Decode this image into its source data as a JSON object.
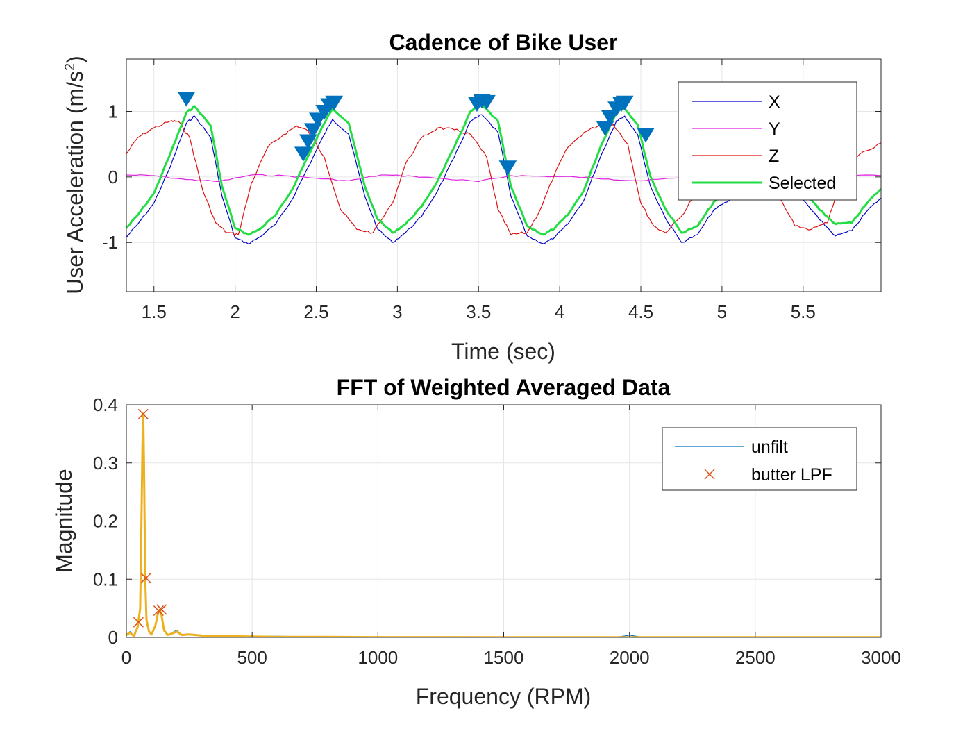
{
  "chart_data": [
    {
      "type": "line",
      "title": "Cadence of Bike User",
      "xlabel": "Time (sec)",
      "ylabel_main": "User Acceleration (m/s",
      "ylabel_sup": "2",
      "ylabel_tail": ")",
      "xlim": [
        1.33,
        5.98
      ],
      "ylim": [
        -1.75,
        1.8
      ],
      "grid": true,
      "legend_position": "top-right",
      "x_ticks": [
        1.5,
        2,
        2.5,
        3,
        3.5,
        4,
        4.5,
        5,
        5.5
      ],
      "x_tick_labels": [
        "1.5",
        "2",
        "2.5",
        "3",
        "3.5",
        "4",
        "4.5",
        "5",
        "5.5"
      ],
      "y_ticks": [
        -1,
        0,
        1
      ],
      "y_tick_labels": [
        "-1",
        "0",
        "1"
      ],
      "colors": {
        "X": "#0000cc",
        "Y": "#e020e0",
        "Z": "#dd1111",
        "Selected": "#22dd44",
        "peaks": "#0072bd"
      },
      "series": [
        {
          "name": "X",
          "x": [
            1.33,
            1.4,
            1.5,
            1.6,
            1.7,
            1.75,
            1.85,
            1.92,
            2.0,
            2.08,
            2.15,
            2.25,
            2.35,
            2.45,
            2.55,
            2.6,
            2.7,
            2.8,
            2.88,
            2.97,
            3.05,
            3.15,
            3.25,
            3.35,
            3.45,
            3.52,
            3.62,
            3.7,
            3.8,
            3.9,
            3.97,
            4.05,
            4.15,
            4.25,
            4.35,
            4.4,
            4.48,
            4.56,
            4.65,
            4.75,
            4.85,
            4.95,
            5.05,
            5.2,
            5.35,
            5.5,
            5.6,
            5.7,
            5.8,
            5.9,
            5.98
          ],
          "y": [
            -0.92,
            -0.72,
            -0.4,
            0.15,
            0.82,
            0.93,
            0.6,
            -0.3,
            -0.93,
            -1.02,
            -0.92,
            -0.72,
            -0.35,
            0.15,
            0.65,
            0.88,
            0.65,
            -0.3,
            -0.8,
            -1.0,
            -0.85,
            -0.6,
            -0.2,
            0.3,
            0.85,
            0.95,
            0.68,
            -0.3,
            -0.9,
            -1.02,
            -0.92,
            -0.72,
            -0.35,
            0.3,
            0.86,
            0.93,
            0.65,
            -0.15,
            -0.62,
            -1.0,
            -0.88,
            -0.5,
            -0.35,
            -0.25,
            -0.3,
            -0.35,
            -0.65,
            -0.9,
            -0.82,
            -0.5,
            -0.32
          ]
        },
        {
          "name": "Y",
          "x": [
            1.33,
            1.5,
            1.7,
            1.9,
            2.1,
            2.3,
            2.5,
            2.7,
            2.9,
            3.1,
            3.3,
            3.5,
            3.7,
            3.9,
            4.1,
            4.3,
            4.5,
            4.7,
            4.9,
            5.1,
            5.3,
            5.5,
            5.7,
            5.98
          ],
          "y": [
            0.03,
            0.02,
            -0.04,
            -0.07,
            0.03,
            0.02,
            -0.02,
            -0.06,
            0.03,
            0.01,
            -0.03,
            -0.07,
            0.02,
            0.01,
            0.0,
            -0.03,
            -0.06,
            -0.02,
            0.0,
            0.02,
            0.01,
            0.02,
            0.02,
            0.02
          ]
        },
        {
          "name": "Z",
          "x": [
            1.33,
            1.4,
            1.5,
            1.6,
            1.65,
            1.72,
            1.8,
            1.88,
            1.95,
            2.02,
            2.1,
            2.2,
            2.3,
            2.38,
            2.45,
            2.55,
            2.65,
            2.75,
            2.85,
            2.97,
            3.05,
            3.15,
            3.25,
            3.35,
            3.45,
            3.55,
            3.62,
            3.7,
            3.8,
            3.88,
            3.97,
            4.05,
            4.15,
            4.25,
            4.33,
            4.42,
            4.5,
            4.58,
            4.65,
            4.75,
            4.85,
            4.95,
            5.05,
            5.15,
            5.25,
            5.35,
            5.45,
            5.55,
            5.65,
            5.75,
            5.85,
            5.98
          ],
          "y": [
            0.35,
            0.6,
            0.75,
            0.85,
            0.85,
            0.6,
            -0.2,
            -0.7,
            -0.85,
            -0.88,
            -0.1,
            0.45,
            0.65,
            0.78,
            0.7,
            0.3,
            -0.5,
            -0.8,
            -0.85,
            -0.4,
            0.2,
            0.6,
            0.75,
            0.72,
            0.65,
            0.3,
            -0.5,
            -0.88,
            -0.85,
            -0.5,
            0.05,
            0.45,
            0.68,
            0.8,
            0.8,
            0.5,
            -0.4,
            -0.75,
            -0.85,
            -0.6,
            -0.2,
            0.35,
            0.65,
            0.6,
            0.3,
            -0.3,
            -0.75,
            -0.8,
            -0.7,
            0.1,
            0.35,
            0.52
          ]
        },
        {
          "name": "Selected",
          "x": [
            1.33,
            1.4,
            1.5,
            1.6,
            1.7,
            1.75,
            1.85,
            1.92,
            2.0,
            2.08,
            2.15,
            2.25,
            2.35,
            2.45,
            2.55,
            2.6,
            2.7,
            2.8,
            2.88,
            2.97,
            3.05,
            3.15,
            3.25,
            3.35,
            3.45,
            3.52,
            3.62,
            3.7,
            3.8,
            3.9,
            3.97,
            4.05,
            4.15,
            4.25,
            4.35,
            4.4,
            4.48,
            4.56,
            4.65,
            4.75,
            4.85,
            4.95,
            5.05,
            5.2,
            5.35,
            5.5,
            5.6,
            5.7,
            5.8,
            5.9,
            5.98
          ],
          "y": [
            -0.78,
            -0.58,
            -0.25,
            0.35,
            0.98,
            1.08,
            0.78,
            -0.15,
            -0.78,
            -0.88,
            -0.8,
            -0.58,
            -0.2,
            0.32,
            0.82,
            1.05,
            0.82,
            -0.15,
            -0.65,
            -0.85,
            -0.72,
            -0.45,
            -0.05,
            0.45,
            1.0,
            1.1,
            0.85,
            -0.15,
            -0.75,
            -0.88,
            -0.78,
            -0.58,
            -0.2,
            0.45,
            1.0,
            1.05,
            0.8,
            0.0,
            -0.48,
            -0.85,
            -0.75,
            -0.38,
            -0.2,
            -0.12,
            -0.15,
            -0.2,
            -0.5,
            -0.72,
            -0.7,
            -0.38,
            -0.18
          ]
        }
      ],
      "peaks": {
        "x": [
          1.7,
          2.42,
          2.45,
          2.48,
          2.51,
          2.55,
          2.58,
          2.61,
          3.49,
          3.52,
          3.55,
          3.68,
          4.28,
          4.31,
          4.35,
          4.38,
          4.4,
          4.53
        ],
        "y": [
          1.2,
          0.36,
          0.55,
          0.72,
          0.88,
          1.0,
          1.1,
          1.14,
          1.12,
          1.17,
          1.15,
          0.15,
          0.75,
          0.92,
          1.05,
          1.12,
          1.14,
          0.65
        ]
      },
      "legend": [
        {
          "label": "X",
          "style": "line"
        },
        {
          "label": "Y",
          "style": "line"
        },
        {
          "label": "Z",
          "style": "line"
        },
        {
          "label": "Selected",
          "style": "thick-line"
        }
      ]
    },
    {
      "type": "line",
      "title": "FFT of Weighted Averaged Data",
      "xlabel": "Frequency (RPM)",
      "ylabel": "Magnitude",
      "xlim": [
        0,
        3000
      ],
      "ylim": [
        0,
        0.4
      ],
      "grid": true,
      "legend_position": "top-right",
      "x_ticks": [
        0,
        500,
        1000,
        1500,
        2000,
        2500,
        3000
      ],
      "x_tick_labels": [
        "0",
        "500",
        "1000",
        "1500",
        "2000",
        "2500",
        "3000"
      ],
      "y_ticks": [
        0,
        0.1,
        0.2,
        0.3,
        0.4
      ],
      "y_tick_labels": [
        "0",
        "0.1",
        "0.2",
        "0.3",
        "0.4"
      ],
      "colors": {
        "unfilt": "#0072bd",
        "butter LPF": "#edb120",
        "markers": "#d95319"
      },
      "series": [
        {
          "name": "unfilt",
          "x": [
            0,
            15,
            30,
            45,
            55,
            60,
            64,
            67,
            70,
            75,
            80,
            90,
            100,
            115,
            125,
            133,
            140,
            150,
            165,
            190,
            200,
            220,
            250,
            300,
            350,
            400,
            500,
            600,
            800,
            1000,
            1500,
            1950,
            1990,
            2000,
            2010,
            2050,
            2500,
            3000
          ],
          "y": [
            0.005,
            0.01,
            0.003,
            0.02,
            0.05,
            0.2,
            0.33,
            0.385,
            0.3,
            0.1,
            0.03,
            0.01,
            0.005,
            0.02,
            0.04,
            0.048,
            0.038,
            0.012,
            0.004,
            0.01,
            0.012,
            0.005,
            0.006,
            0.004,
            0.004,
            0.003,
            0.002,
            0.002,
            0.001,
            0.001,
            0.0005,
            0.0005,
            0.003,
            0.004,
            0.003,
            0.0005,
            0.0003,
            0.0003
          ]
        },
        {
          "name": "butter LPF",
          "x": [
            0,
            15,
            30,
            45,
            55,
            60,
            64,
            67,
            70,
            75,
            80,
            90,
            100,
            115,
            125,
            133,
            140,
            150,
            165,
            190,
            200,
            220,
            250,
            300,
            350,
            400,
            500,
            600,
            800,
            1000,
            1500,
            2000,
            2500,
            3000
          ],
          "y": [
            0.004,
            0.008,
            0.002,
            0.018,
            0.05,
            0.2,
            0.33,
            0.385,
            0.3,
            0.1,
            0.03,
            0.01,
            0.005,
            0.02,
            0.04,
            0.048,
            0.038,
            0.012,
            0.004,
            0.008,
            0.01,
            0.004,
            0.005,
            0.003,
            0.003,
            0.002,
            0.0015,
            0.001,
            0.0008,
            0.0005,
            0.0003,
            0.0002,
            0.0002,
            0.0002
          ]
        }
      ],
      "markers": {
        "x": [
          48,
          67,
          78,
          128,
          140
        ],
        "y": [
          0.026,
          0.384,
          0.102,
          0.046,
          0.048
        ]
      },
      "legend": [
        {
          "label": "unfilt",
          "style": "line"
        },
        {
          "label": "butter LPF",
          "style": "x-marker"
        }
      ]
    }
  ]
}
